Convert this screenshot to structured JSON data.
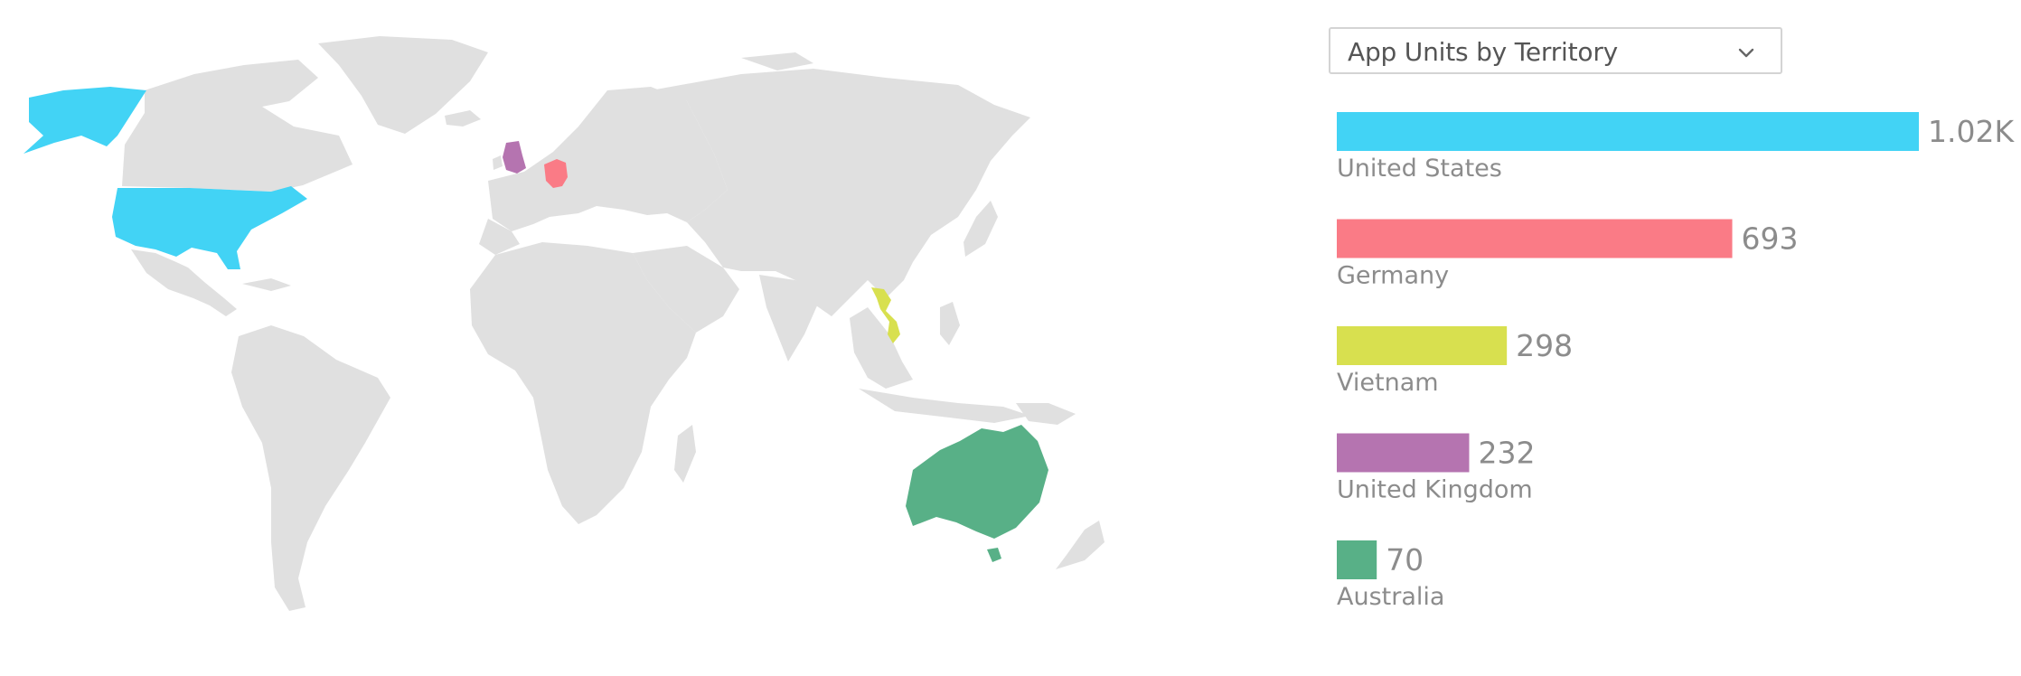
{
  "selector": {
    "label": "App Units by Territory",
    "icon": "chevron-down-icon"
  },
  "chart_data": [
    {
      "type": "bar",
      "orientation": "horizontal",
      "categories": [
        "United States",
        "Germany",
        "Vietnam",
        "United Kingdom",
        "Australia"
      ],
      "values": [
        1020,
        693,
        298,
        232,
        70
      ],
      "value_labels": [
        "1.02K",
        "693",
        "298",
        "232",
        "70"
      ],
      "colors": [
        "#42d3f5",
        "#fa7b86",
        "#d8e04f",
        "#b574b0",
        "#58b087"
      ],
      "grid": false
    },
    {
      "type": "map",
      "map_kind": "world choropleth",
      "base_color": "#e0e0e0",
      "highlighted": [
        {
          "country": "United States",
          "color": "#42d3f5"
        },
        {
          "country": "Germany",
          "color": "#fa7b86"
        },
        {
          "country": "Vietnam",
          "color": "#d8e04f"
        },
        {
          "country": "United Kingdom",
          "color": "#b574b0"
        },
        {
          "country": "Australia",
          "color": "#58b087"
        }
      ]
    }
  ]
}
